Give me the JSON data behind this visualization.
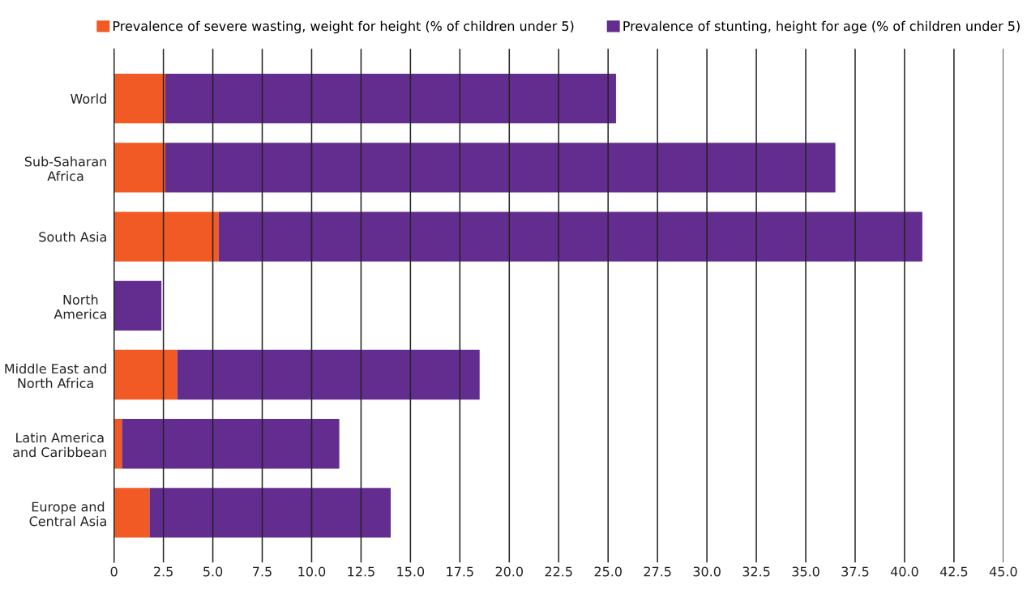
{
  "chart_data": {
    "type": "bar",
    "orientation": "horizontal",
    "stacked": true,
    "categories": [
      "World",
      "Sub-Saharan\nAfrica",
      "South Asia",
      "North\nAmerica",
      "Middle East and\nNorth Africa",
      "Latin America\nand Caribbean",
      "Europe and\nCentral Asia"
    ],
    "series": [
      {
        "name": "Prevalence of severe wasting, weight for height (% of children under 5)",
        "color": "#f15a24",
        "values": [
          2.6,
          2.6,
          5.3,
          0,
          3.2,
          0.4,
          1.8
        ]
      },
      {
        "name": "Prevalence of stunting, height for age (% of children under 5)",
        "color": "#632d8f",
        "values": [
          22.8,
          33.9,
          35.6,
          2.4,
          15.3,
          11.0,
          12.2
        ]
      }
    ],
    "xlim": [
      0,
      45
    ],
    "xticks": [
      0,
      2.5,
      {
        "value": 5,
        "label": "5.0"
      },
      7.5,
      {
        "value": 10,
        "label": "10.0"
      },
      12.5,
      {
        "value": 15,
        "label": "15.0"
      },
      17.5,
      {
        "value": 20,
        "label": "20.0"
      },
      22.5,
      {
        "value": 25,
        "label": "25.0"
      },
      27.5,
      {
        "value": 30,
        "label": "30.0"
      },
      32.5,
      {
        "value": 35,
        "label": "35.0"
      },
      37.5,
      {
        "value": 40,
        "label": "40.0"
      },
      42.5,
      {
        "value": 45,
        "label": "45.0"
      }
    ],
    "grid": "x",
    "legend": "top"
  }
}
